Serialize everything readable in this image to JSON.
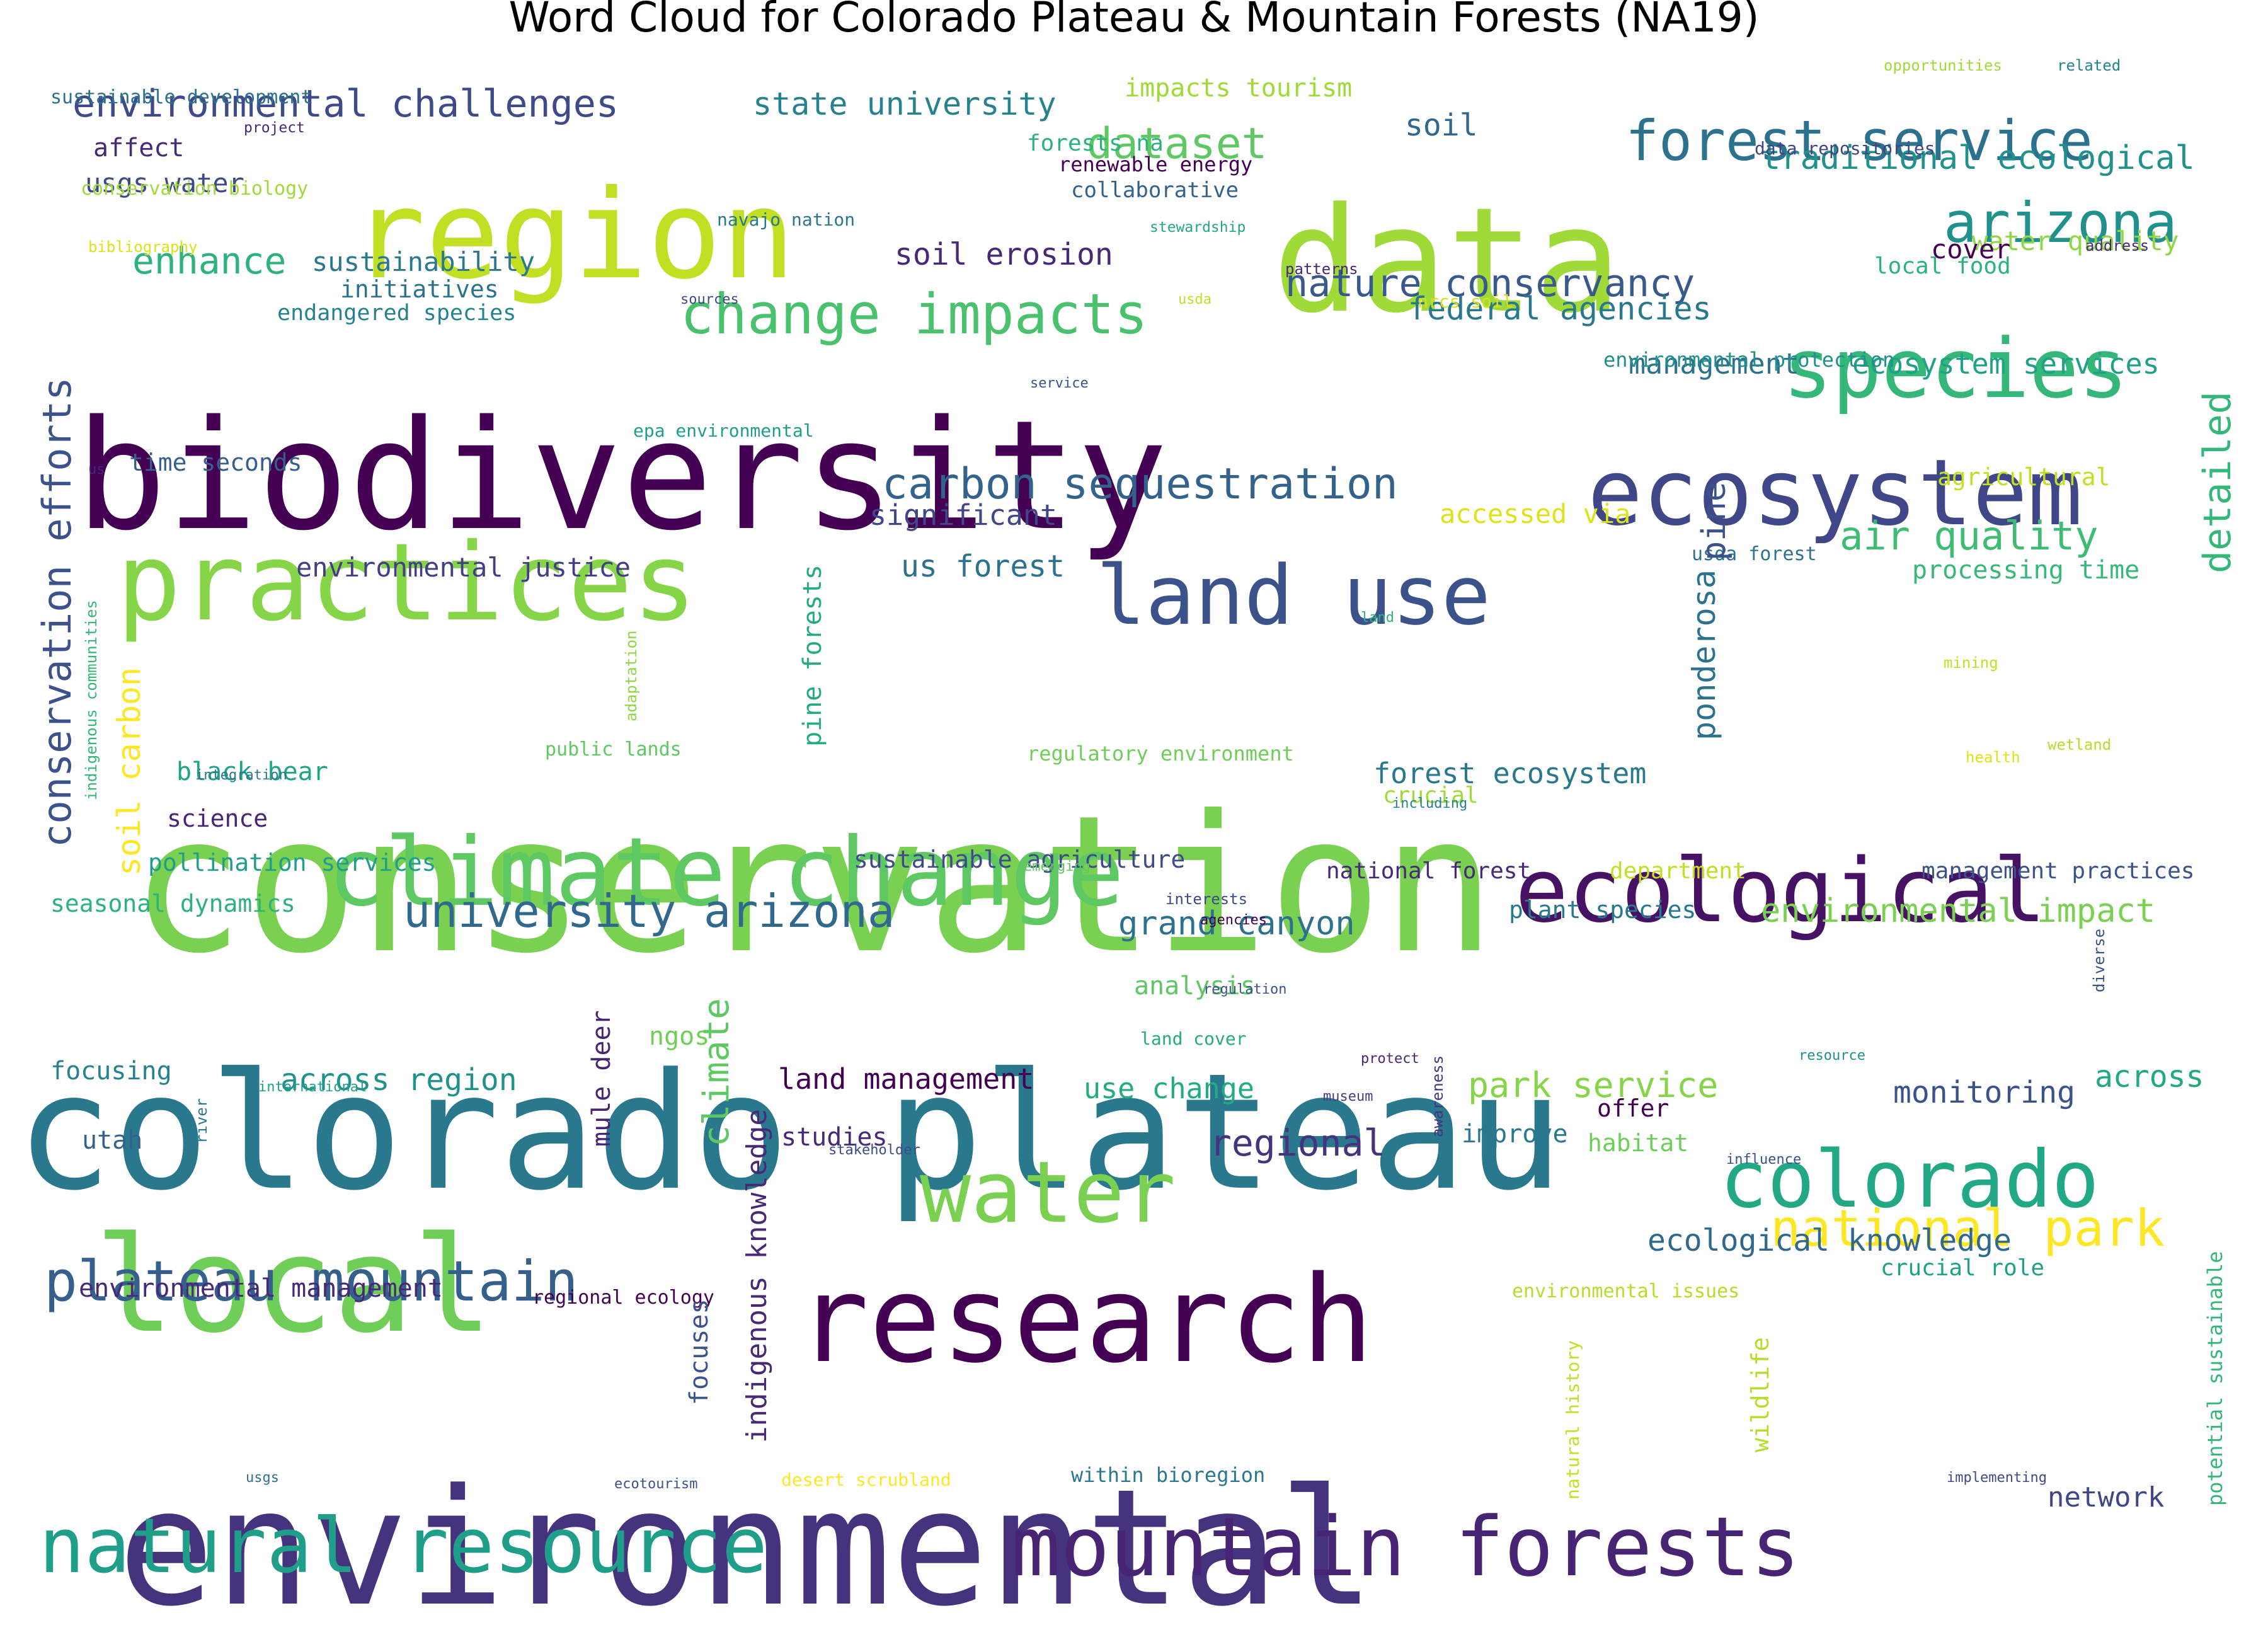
{
  "title": "Word Cloud for Colorado Plateau & Mountain Forests (NA19)",
  "colors": {
    "background": "#ffffff",
    "palette": "viridis"
  },
  "words": [
    {
      "text": "conservation",
      "color": "#7ad151"
    },
    {
      "text": "environmental",
      "color": "#46337e"
    },
    {
      "text": "biodiversity",
      "color": "#440154"
    },
    {
      "text": "colorado plateau",
      "color": "#2a788e"
    },
    {
      "text": "region",
      "color": "#c2df23"
    },
    {
      "text": "data",
      "color": "#a0da39"
    },
    {
      "text": "research",
      "color": "#440154"
    },
    {
      "text": "local",
      "color": "#6ece58"
    },
    {
      "text": "practices",
      "color": "#86d549"
    },
    {
      "text": "climate change",
      "color": "#5ec962"
    },
    {
      "text": "ecosystem",
      "color": "#3f4788"
    },
    {
      "text": "ecological",
      "color": "#471164"
    },
    {
      "text": "natural resource",
      "color": "#1f9e89"
    },
    {
      "text": "mountain forests",
      "color": "#482475"
    },
    {
      "text": "water",
      "color": "#7ad151"
    },
    {
      "text": "colorado",
      "color": "#22a884"
    },
    {
      "text": "species",
      "color": "#35b779"
    },
    {
      "text": "land use",
      "color": "#3b528b"
    },
    {
      "text": "forest service",
      "color": "#2c728e"
    },
    {
      "text": "arizona",
      "color": "#21918c"
    },
    {
      "text": "change impacts",
      "color": "#4ac16d"
    },
    {
      "text": "plateau mountain",
      "color": "#355f8d"
    },
    {
      "text": "national park",
      "color": "#fde725"
    },
    {
      "text": "conservation efforts",
      "color": "#3b528b"
    },
    {
      "text": "university arizona",
      "color": "#31688e"
    },
    {
      "text": "carbon sequestration",
      "color": "#33638d"
    },
    {
      "text": "environmental challenges",
      "color": "#3e4a89"
    },
    {
      "text": "dataset",
      "color": "#5ec962"
    },
    {
      "text": "state university",
      "color": "#26828e"
    },
    {
      "text": "impacts tourism",
      "color": "#a0da39"
    },
    {
      "text": "soil",
      "color": "#31688e"
    },
    {
      "text": "traditional ecological",
      "color": "#21918c"
    },
    {
      "text": "nature conservancy",
      "color": "#38598c"
    },
    {
      "text": "federal agencies",
      "color": "#2a788e"
    },
    {
      "text": "enhance",
      "color": "#2db27d"
    },
    {
      "text": "soil erosion",
      "color": "#482878"
    },
    {
      "text": "sustainability",
      "color": "#2a788e"
    },
    {
      "text": "usgs water",
      "color": "#3e4a89"
    },
    {
      "text": "affect",
      "color": "#482878"
    },
    {
      "text": "initiatives",
      "color": "#2c728e"
    },
    {
      "text": "endangered species",
      "color": "#26828e"
    },
    {
      "text": "air quality",
      "color": "#3fbc73"
    },
    {
      "text": "management",
      "color": "#2c728e"
    },
    {
      "text": "ecosystem services",
      "color": "#1fa187"
    },
    {
      "text": "water quality",
      "color": "#8fd744"
    },
    {
      "text": "cover",
      "color": "#440154"
    },
    {
      "text": "local food",
      "color": "#2db27d"
    },
    {
      "text": "detailed",
      "color": "#35b779"
    },
    {
      "text": "significant",
      "color": "#404688"
    },
    {
      "text": "us forest",
      "color": "#2c728e"
    },
    {
      "text": "accessed via",
      "color": "#dde318"
    },
    {
      "text": "environmental justice",
      "color": "#433e85"
    },
    {
      "text": "time seconds",
      "color": "#355f8d"
    },
    {
      "text": "processing time",
      "color": "#37b878"
    },
    {
      "text": "agricultural",
      "color": "#c2df23"
    },
    {
      "text": "soil carbon",
      "color": "#fde725"
    },
    {
      "text": "forest ecosystem",
      "color": "#2a788e"
    },
    {
      "text": "crucial",
      "color": "#a0da39"
    },
    {
      "text": "black bear",
      "color": "#20a486"
    },
    {
      "text": "science",
      "color": "#482475"
    },
    {
      "text": "pollination services",
      "color": "#1f9e89"
    },
    {
      "text": "seasonal dynamics",
      "color": "#2db27d"
    },
    {
      "text": "sustainable agriculture",
      "color": "#3e4a89"
    },
    {
      "text": "grand canyon",
      "color": "#2c728e"
    },
    {
      "text": "environmental impact",
      "color": "#7ad151"
    },
    {
      "text": "plant species",
      "color": "#2a788e"
    },
    {
      "text": "management practices",
      "color": "#3b528b"
    },
    {
      "text": "department",
      "color": "#c2df23"
    },
    {
      "text": "national forest",
      "color": "#482878"
    },
    {
      "text": "analysis",
      "color": "#5ec962"
    },
    {
      "text": "across region",
      "color": "#21918c"
    },
    {
      "text": "focusing",
      "color": "#26828e"
    },
    {
      "text": "land management",
      "color": "#440154"
    },
    {
      "text": "use change",
      "color": "#25ab82"
    },
    {
      "text": "park service",
      "color": "#86d549"
    },
    {
      "text": "monitoring",
      "color": "#3b528b"
    },
    {
      "text": "across",
      "color": "#22a884"
    },
    {
      "text": "regional",
      "color": "#46337e"
    },
    {
      "text": "utah",
      "color": "#33638d"
    },
    {
      "text": "studies",
      "color": "#482878"
    },
    {
      "text": "offer",
      "color": "#440154"
    },
    {
      "text": "improve",
      "color": "#2a788e"
    },
    {
      "text": "habitat",
      "color": "#6ece58"
    },
    {
      "text": "ecological knowledge",
      "color": "#31688e"
    },
    {
      "text": "crucial role",
      "color": "#1fa187"
    },
    {
      "text": "environmental management",
      "color": "#482878"
    },
    {
      "text": "regional ecology",
      "color": "#440154"
    },
    {
      "text": "environmental issues",
      "color": "#b5de2b"
    },
    {
      "text": "network",
      "color": "#404688"
    },
    {
      "text": "within bioregion",
      "color": "#2a788e"
    },
    {
      "text": "desert scrubland",
      "color": "#fde725"
    },
    {
      "text": "ecotourism",
      "color": "#3b528b"
    },
    {
      "text": "usgs",
      "color": "#2c728e"
    },
    {
      "text": "implementing",
      "color": "#3e4a89"
    },
    {
      "text": "sustainable development",
      "color": "#2c728e"
    },
    {
      "text": "conservation biology",
      "color": "#a0da39"
    },
    {
      "text": "project",
      "color": "#482878"
    },
    {
      "text": "bibliography",
      "color": "#dde318"
    },
    {
      "text": "forests na",
      "color": "#2db27d"
    },
    {
      "text": "renewable energy",
      "color": "#440154"
    },
    {
      "text": "collaborative",
      "color": "#33638d"
    },
    {
      "text": "navajo nation",
      "color": "#2a788e"
    },
    {
      "text": "stewardship",
      "color": "#22a884"
    },
    {
      "text": "patterns",
      "color": "#482878"
    },
    {
      "text": "sources",
      "color": "#3e4a89"
    },
    {
      "text": "usda",
      "color": "#c2df23"
    },
    {
      "text": "nrcs soil",
      "color": "#d8e219"
    },
    {
      "text": "environmental protection",
      "color": "#21918c"
    },
    {
      "text": "service",
      "color": "#3b528b"
    },
    {
      "text": "epa environmental",
      "color": "#1f9e89"
    },
    {
      "text": "us",
      "color": "#482878"
    },
    {
      "text": "usda forest",
      "color": "#2c728e"
    },
    {
      "text": "opportunities",
      "color": "#a0da39"
    },
    {
      "text": "related",
      "color": "#26828e"
    },
    {
      "text": "data repositories",
      "color": "#414487"
    },
    {
      "text": "address",
      "color": "#482878"
    },
    {
      "text": "land",
      "color": "#2db27d"
    },
    {
      "text": "mining",
      "color": "#c2df23"
    },
    {
      "text": "wetland",
      "color": "#b5de2b"
    },
    {
      "text": "health",
      "color": "#dde318"
    },
    {
      "text": "including",
      "color": "#26828e"
    },
    {
      "text": "public lands",
      "color": "#5ec962"
    },
    {
      "text": "integration",
      "color": "#2a788e"
    },
    {
      "text": "regulatory environment",
      "color": "#6ece58"
    },
    {
      "text": "emerging",
      "color": "#5ec962"
    },
    {
      "text": "interests",
      "color": "#3e4a89"
    },
    {
      "text": "agencies",
      "color": "#440154"
    },
    {
      "text": "regulation",
      "color": "#3b528b"
    },
    {
      "text": "land cover",
      "color": "#25ab82"
    },
    {
      "text": "protect",
      "color": "#482878"
    },
    {
      "text": "resource",
      "color": "#21918c"
    },
    {
      "text": "museum",
      "color": "#433e85"
    },
    {
      "text": "stakeholder",
      "color": "#3e4a89"
    },
    {
      "text": "influence",
      "color": "#3b528b"
    },
    {
      "text": "international",
      "color": "#1f9e89"
    },
    {
      "text": "ngos",
      "color": "#6ece58"
    },
    {
      "text": "pine",
      "color": "#3b528b"
    },
    {
      "text": "ponderosa",
      "color": "#2c728e"
    },
    {
      "text": "pine forests",
      "color": "#25ab82"
    },
    {
      "text": "climate",
      "color": "#5ec962"
    },
    {
      "text": "indigenous knowledge",
      "color": "#482878"
    },
    {
      "text": "mule deer",
      "color": "#482475"
    },
    {
      "text": "adaptation",
      "color": "#8fd744"
    },
    {
      "text": "indigenous communities",
      "color": "#35b779"
    },
    {
      "text": "river",
      "color": "#2a788e"
    },
    {
      "text": "awareness",
      "color": "#46337e"
    },
    {
      "text": "diverse",
      "color": "#3b528b"
    },
    {
      "text": "focuses",
      "color": "#3b528b"
    },
    {
      "text": "natural history",
      "color": "#c2df23"
    },
    {
      "text": "wildlife",
      "color": "#b5de2b"
    },
    {
      "text": "potential sustainable",
      "color": "#35b779"
    }
  ]
}
